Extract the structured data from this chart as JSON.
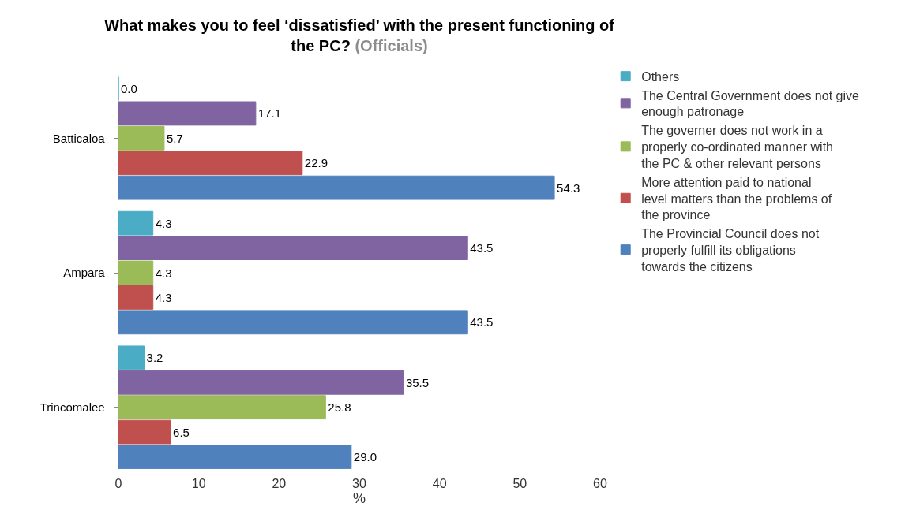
{
  "chart_data": {
    "type": "bar",
    "orientation": "horizontal",
    "title": "What makes you to feel ‘dissatisfied’ with the present functioning of the PC?",
    "subtitle": "(Officials)",
    "xlabel": "%",
    "categories": [
      "Batticaloa",
      "Ampara",
      "Trincomalee"
    ],
    "series": [
      {
        "name": "Others",
        "color": "#4bacc6",
        "values": [
          0,
          4.3,
          3.2
        ],
        "value_labels": [
          "0.0",
          "4.3",
          "3.2"
        ]
      },
      {
        "name": "The Central Government does not give enough patronage",
        "color": "#8064a2",
        "values": [
          17.1,
          43.5,
          35.5
        ]
      },
      {
        "name": "The governer does not work in a properly co-ordinated manner with the PC & other relevant persons",
        "color": "#9bbb59",
        "values": [
          5.7,
          4.3,
          25.8
        ]
      },
      {
        "name": "More attention paid to national level matters than the problems of the province",
        "color": "#c0504d",
        "values": [
          22.9,
          4.3,
          6.5
        ]
      },
      {
        "name": "The Provincial Council does not properly fulfill its obligations towards the citizens",
        "color": "#4f81bd",
        "values": [
          54.3,
          43.5,
          29
        ],
        "value_labels": [
          "54.3",
          "43.5",
          "29.0"
        ]
      }
    ],
    "xlim": [
      0,
      60
    ],
    "xticks": [
      0,
      10,
      20,
      30,
      40,
      50,
      60
    ],
    "data_labels": true,
    "legend": "right"
  }
}
